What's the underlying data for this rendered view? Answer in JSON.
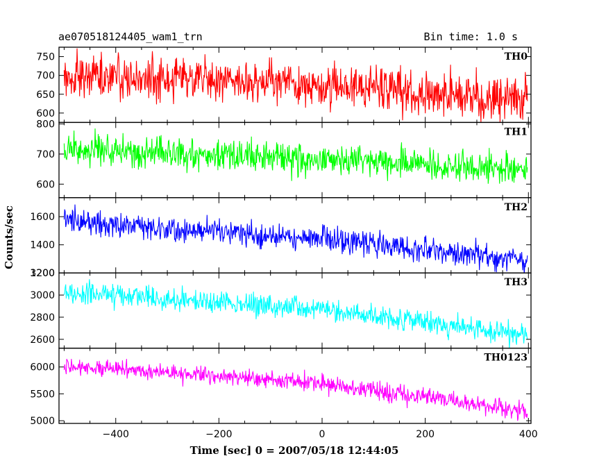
{
  "header": {
    "left_title": "ae070518124405_wam1_trn",
    "right_title": "Bin time: 1.0 s"
  },
  "chart_data": {
    "type": "line",
    "xlabel": "Time [sec] 0 = 2007/05/18 12:44:05",
    "ylabel": "Counts/sec",
    "xlim": [
      -510,
      405
    ],
    "x_ticks": [
      -400,
      -200,
      0,
      200,
      400
    ],
    "x_data_range": [
      -500,
      398
    ],
    "bin_time_s": 1.0,
    "panels": [
      {
        "name": "TH0",
        "color": "#ff0000",
        "ylim": [
          575,
          775
        ],
        "y_ticks": [
          600,
          650,
          700,
          750
        ],
        "trend": [
          [
            -500,
            700
          ],
          [
            0,
            680
          ],
          [
            398,
            630
          ]
        ],
        "noise": 30
      },
      {
        "name": "TH1",
        "color": "#00ff00",
        "ylim": [
          555,
          805
        ],
        "y_ticks": [
          600,
          700,
          800
        ],
        "trend": [
          [
            -500,
            720
          ],
          [
            0,
            680
          ],
          [
            398,
            650
          ]
        ],
        "noise": 27
      },
      {
        "name": "TH2",
        "color": "#0000ff",
        "ylim": [
          1200,
          1735
        ],
        "y_ticks": [
          1200,
          1400,
          1600
        ],
        "trend": [
          [
            -500,
            1570
          ],
          [
            0,
            1440
          ],
          [
            398,
            1290
          ]
        ],
        "noise": 45
      },
      {
        "name": "TH3",
        "color": "#00ffff",
        "ylim": [
          2520,
          3200
        ],
        "y_ticks": [
          2600,
          2800,
          3000,
          3200
        ],
        "trend": [
          [
            -500,
            3030
          ],
          [
            0,
            2870
          ],
          [
            398,
            2640
          ]
        ],
        "noise": 50
      },
      {
        "name": "TH0123",
        "color": "#ff00ff",
        "ylim": [
          4950,
          6350
        ],
        "y_ticks": [
          5000,
          5500,
          6000
        ],
        "trend": [
          [
            -500,
            6020
          ],
          [
            0,
            5700
          ],
          [
            398,
            5170
          ]
        ],
        "noise": 80
      }
    ]
  }
}
